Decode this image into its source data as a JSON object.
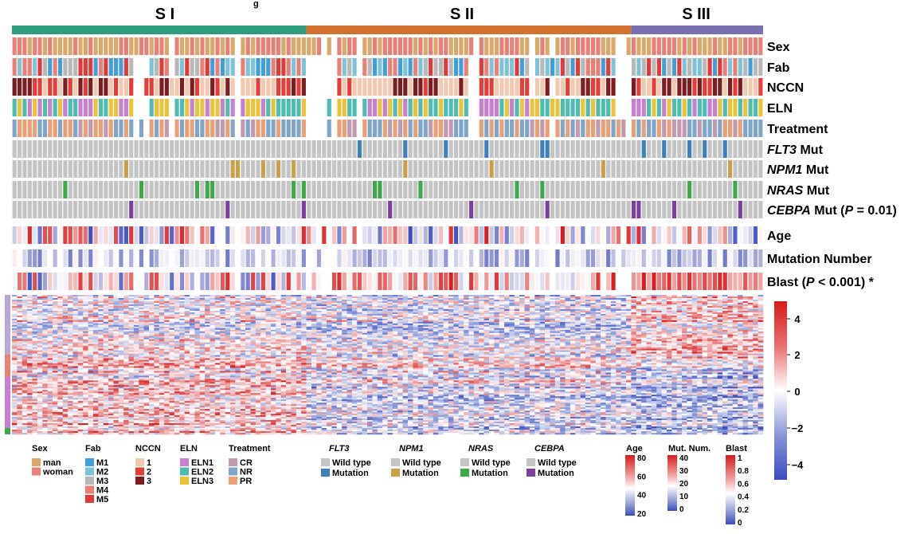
{
  "chart_data": {
    "type": "heatmap",
    "subtypes": [
      {
        "label": "S I",
        "color": "#2e9e7e",
        "samples": 58
      },
      {
        "label": "S II",
        "color": "#d2722e",
        "samples": 64
      },
      {
        "label": "S III",
        "color": "#7a6fb0",
        "samples": 26
      }
    ],
    "annotation_rows": [
      {
        "key": "sex",
        "label": "Sex",
        "categorical": true,
        "legend_title": "Sex",
        "levels": [
          {
            "name": "man",
            "color": "#d9a86a"
          },
          {
            "name": "woman",
            "color": "#e88078"
          }
        ]
      },
      {
        "key": "fab",
        "label": "Fab",
        "categorical": true,
        "legend_title": "Fab",
        "levels": [
          {
            "name": "M1",
            "color": "#3f9fd6"
          },
          {
            "name": "M2",
            "color": "#7ec2d6"
          },
          {
            "name": "M3",
            "color": "#b8b8b8"
          },
          {
            "name": "M4",
            "color": "#e88078"
          },
          {
            "name": "M5",
            "color": "#e03a3a"
          }
        ]
      },
      {
        "key": "nccn",
        "label": "NCCN",
        "categorical": true,
        "legend_title": "NCCN",
        "levels": [
          {
            "name": "1",
            "color": "#f2c9b0"
          },
          {
            "name": "2",
            "color": "#e43d3a"
          },
          {
            "name": "3",
            "color": "#7d1d22"
          }
        ]
      },
      {
        "key": "eln",
        "label": "ELN",
        "categorical": true,
        "legend_title": "ELN",
        "levels": [
          {
            "name": "ELN1",
            "color": "#c77fd0"
          },
          {
            "name": "ELN2",
            "color": "#4fbcb2"
          },
          {
            "name": "ELN3",
            "color": "#e9c43a"
          }
        ]
      },
      {
        "key": "treatment",
        "label": "Treatment",
        "categorical": true,
        "legend_title": "Treatment",
        "levels": [
          {
            "name": "CR",
            "color": "#c29ab0"
          },
          {
            "name": "NR",
            "color": "#7fa6c9"
          },
          {
            "name": "PR",
            "color": "#e8a176"
          }
        ]
      },
      {
        "key": "flt3",
        "label_italic": "FLT3",
        "label_rest": " Mut",
        "categorical": true,
        "legend_title": "FLT3",
        "levels": [
          {
            "name": "Wild type",
            "color": "#c4c4c4"
          },
          {
            "name": "Mutation",
            "color": "#3f7fba"
          }
        ]
      },
      {
        "key": "npm1",
        "label_italic": "NPM1",
        "label_rest": " Mut",
        "categorical": true,
        "legend_title": "NPM1",
        "levels": [
          {
            "name": "Wild type",
            "color": "#c4c4c4"
          },
          {
            "name": "Mutation",
            "color": "#c9a04a"
          }
        ]
      },
      {
        "key": "nras",
        "label_italic": "NRAS",
        "label_rest": " Mut",
        "categorical": true,
        "legend_title": "NRAS",
        "levels": [
          {
            "name": "Wild type",
            "color": "#c4c4c4"
          },
          {
            "name": "Mutation",
            "color": "#3fa84a"
          }
        ]
      },
      {
        "key": "cebpa",
        "label_italic": "CEBPA",
        "label_rest": " Mut  (",
        "label_p": "P",
        "label_end": " = 0.01)",
        "categorical": true,
        "legend_title": "CEBPA",
        "levels": [
          {
            "name": "Wild type",
            "color": "#c4c4c4"
          },
          {
            "name": "Mutation",
            "color": "#7b3f9c"
          }
        ]
      },
      {
        "key": "age",
        "label": "Age",
        "categorical": false,
        "legend_title": "Age",
        "range": [
          20,
          80
        ],
        "ticks": [
          "80",
          "60",
          "40",
          "20"
        ]
      },
      {
        "key": "mutnum",
        "label": "Mutation Number",
        "categorical": false,
        "legend_title": "Mut. Num.",
        "range": [
          0,
          40
        ],
        "ticks": [
          "40",
          "30",
          "20",
          "10",
          "0"
        ]
      },
      {
        "key": "blast",
        "label_pre": "Blast (",
        "label_p": "P",
        "label_end": " < 0.001) *",
        "categorical": false,
        "legend_title": "Blast",
        "range": [
          0,
          1
        ],
        "ticks": [
          "1",
          "0.8",
          "0.6",
          "0.4",
          "0.2",
          "0"
        ]
      }
    ],
    "expression_scale": {
      "min": -5,
      "max": 5,
      "ticks": [
        "4",
        "2",
        "0",
        "−2",
        "−4"
      ],
      "low_color": "#3b4cc0",
      "mid_color": "#ffffff",
      "high_color": "#d7191c"
    },
    "gene_cluster_colors": [
      "#b9a6d3",
      "#e88078",
      "#c77fd0",
      "#3fa84a"
    ]
  },
  "title_fragment": "g"
}
